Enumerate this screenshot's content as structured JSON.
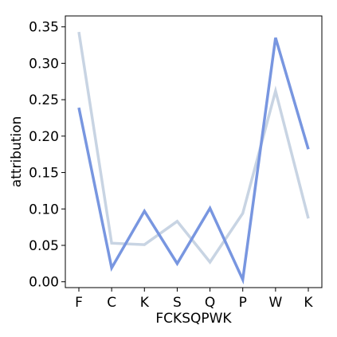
{
  "chart_data": {
    "type": "line",
    "title": "",
    "xlabel": "FCKSQPWK",
    "ylabel": "attribution",
    "categories": [
      "F",
      "C",
      "K",
      "S",
      "Q",
      "P",
      "W",
      "K"
    ],
    "ylim": [
      -0.008,
      0.365
    ],
    "yticks": [
      0.0,
      0.05,
      0.1,
      0.15,
      0.2,
      0.25,
      0.3,
      0.35
    ],
    "ytick_labels": [
      "0.00",
      "0.05",
      "0.10",
      "0.15",
      "0.20",
      "0.25",
      "0.30",
      "0.35"
    ],
    "grid": false,
    "legend": "none",
    "series": [
      {
        "color": "#c8d4e3",
        "values": [
          0.343,
          0.053,
          0.051,
          0.083,
          0.027,
          0.094,
          0.262,
          0.087
        ]
      },
      {
        "color": "#7896e0",
        "values": [
          0.239,
          0.019,
          0.097,
          0.025,
          0.101,
          0.003,
          0.335,
          0.182
        ]
      }
    ]
  }
}
